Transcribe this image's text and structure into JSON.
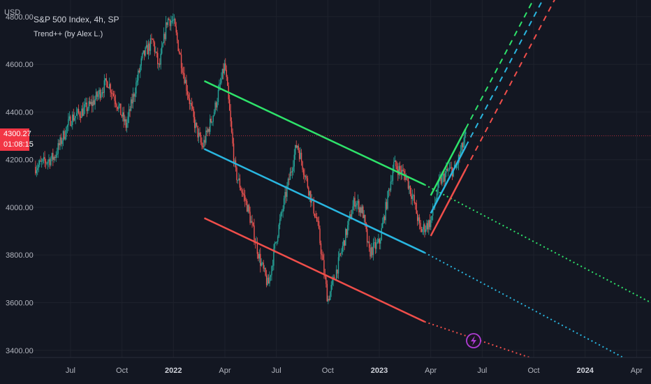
{
  "header": {
    "currency": "USD",
    "symbol_title": "S&P 500 Index, 4h, SP",
    "indicator_name": "Trend++ (by Alex L.)"
  },
  "price_tag": {
    "price": "4300.27",
    "countdown": "01:08:15"
  },
  "colors": {
    "background": "#131722",
    "grid": "#1e222d",
    "candle_up": "#26a69a",
    "candle_down": "#ef5350",
    "trend_upper": "#2ee36a",
    "trend_mid": "#29b6e0",
    "trend_lower": "#f04e4a",
    "price_line": "#f23645",
    "flash_icon": "#b03dd6"
  },
  "flash_icon": "lightning-bolt-icon",
  "chart_data": {
    "type": "candlestick",
    "title": "S&P 500 Index, 4h, SP",
    "ylabel": "USD",
    "ylim": [
      3370,
      4870
    ],
    "y_ticks": [
      "4800.00",
      "4600.00",
      "4400.00",
      "4200.00",
      "4000.00",
      "3800.00",
      "3600.00",
      "3400.00"
    ],
    "x_ticks": [
      "Jul",
      "Oct",
      "2022",
      "Apr",
      "Jul",
      "Oct",
      "2023",
      "Apr",
      "Jul",
      "Oct",
      "2024",
      "Apr"
    ],
    "x_tick_values": [
      2021.5,
      2021.75,
      2022.0,
      2022.25,
      2022.5,
      2022.75,
      2023.0,
      2023.25,
      2023.5,
      2023.75,
      2024.0,
      2024.25
    ],
    "xlim": [
      2021.3,
      2024.32
    ],
    "current_price": 4300.27,
    "price_path": [
      [
        2021.33,
        4170
      ],
      [
        2021.42,
        4210
      ],
      [
        2021.5,
        4370
      ],
      [
        2021.6,
        4430
      ],
      [
        2021.68,
        4530
      ],
      [
        2021.72,
        4450
      ],
      [
        2021.77,
        4340
      ],
      [
        2021.85,
        4630
      ],
      [
        2021.9,
        4700
      ],
      [
        2021.93,
        4580
      ],
      [
        2021.97,
        4790
      ],
      [
        2022.0,
        4780
      ],
      [
        2022.05,
        4560
      ],
      [
        2022.1,
        4360
      ],
      [
        2022.14,
        4250
      ],
      [
        2022.2,
        4410
      ],
      [
        2022.25,
        4600
      ],
      [
        2022.3,
        4150
      ],
      [
        2022.36,
        4000
      ],
      [
        2022.42,
        3780
      ],
      [
        2022.46,
        3670
      ],
      [
        2022.5,
        3870
      ],
      [
        2022.6,
        4270
      ],
      [
        2022.7,
        3930
      ],
      [
        2022.75,
        3610
      ],
      [
        2022.8,
        3760
      ],
      [
        2022.88,
        4030
      ],
      [
        2022.92,
        3980
      ],
      [
        2022.95,
        3810
      ],
      [
        2023.0,
        3850
      ],
      [
        2023.07,
        4180
      ],
      [
        2023.13,
        4130
      ],
      [
        2023.17,
        4020
      ],
      [
        2023.2,
        3900
      ],
      [
        2023.25,
        3940
      ],
      [
        2023.29,
        4100
      ],
      [
        2023.33,
        4150
      ],
      [
        2023.37,
        4160
      ],
      [
        2023.42,
        4300
      ]
    ],
    "trend_lines": [
      {
        "line": "upper",
        "solid": [
          [
            2022.15,
            4530
          ],
          [
            2023.22,
            4095
          ]
        ],
        "projection_end": [
          2024.32,
          3600
        ]
      },
      {
        "line": "middle",
        "solid": [
          [
            2022.15,
            4245
          ],
          [
            2023.22,
            3810
          ]
        ],
        "projection_end": [
          2024.2,
          3363
        ]
      },
      {
        "line": "lower",
        "solid": [
          [
            2022.15,
            3955
          ],
          [
            2023.22,
            3520
          ]
        ],
        "projection_end": [
          2023.73,
          3370
        ]
      },
      {
        "line": "upper",
        "solid": [
          [
            2023.25,
            4050
          ],
          [
            2023.42,
            4330
          ]
        ],
        "projection_end": [
          2023.93,
          5170
        ]
      },
      {
        "line": "middle",
        "solid": [
          [
            2023.25,
            3975
          ],
          [
            2023.42,
            4255
          ]
        ],
        "projection_end": [
          2023.93,
          5095
        ]
      },
      {
        "line": "lower",
        "solid": [
          [
            2023.25,
            3880
          ],
          [
            2023.42,
            4160
          ]
        ],
        "projection_end": [
          2023.93,
          5000
        ]
      }
    ],
    "grid": true
  }
}
